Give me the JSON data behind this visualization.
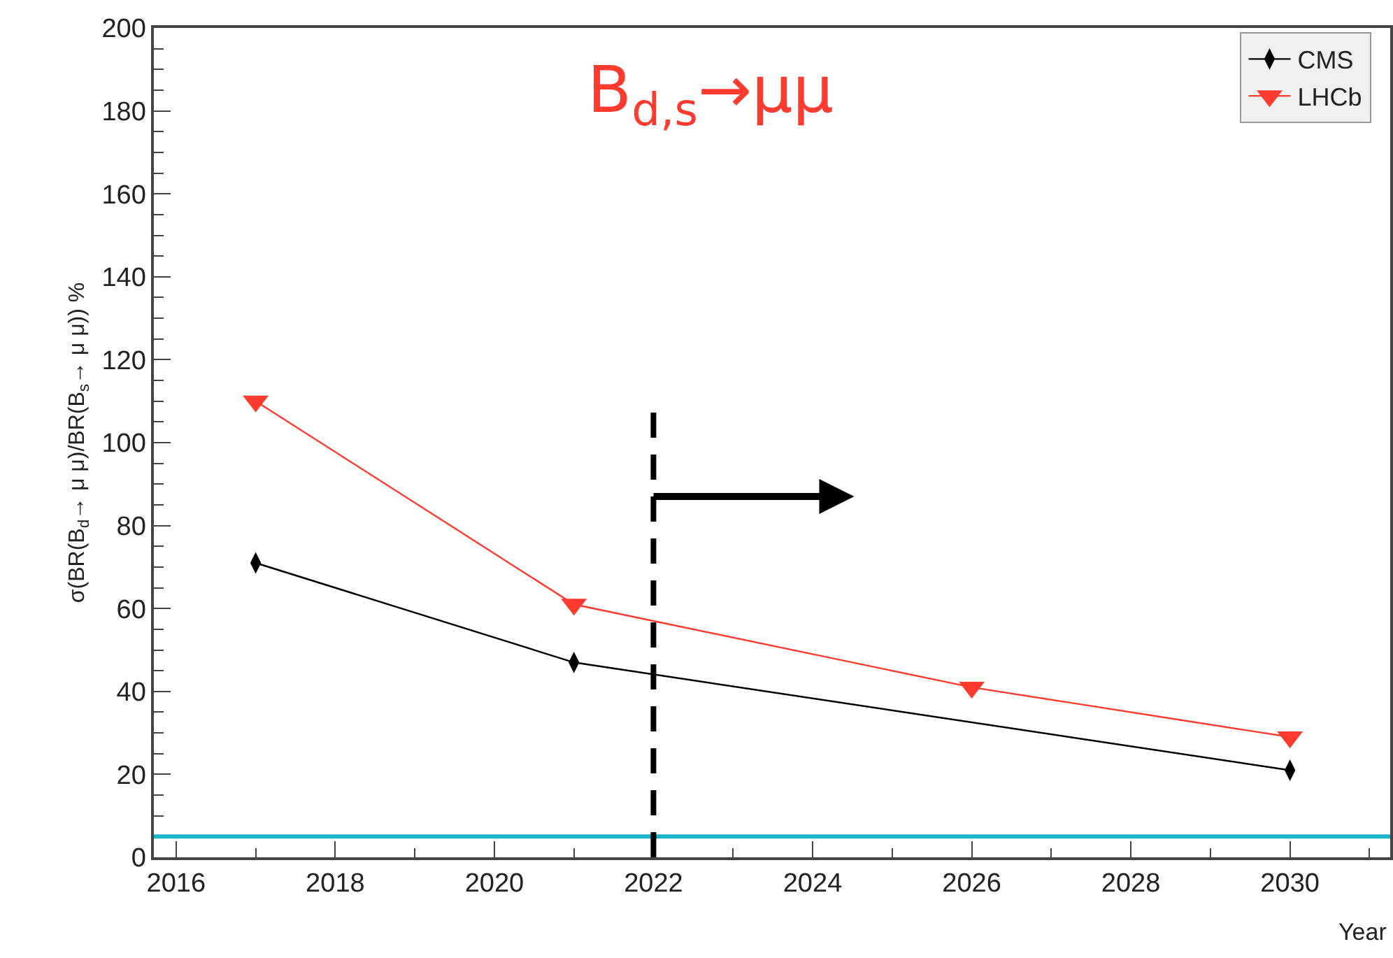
{
  "chart_data": {
    "type": "line",
    "title": "B$_{d,s}$→μμ",
    "xlabel": "Year",
    "ylabel": "σ(BR(B$_{d}$→ μ μ)/BR(B$_{s}$→ μ μ)) %",
    "series": [
      {
        "name": "CMS",
        "color": "#000000",
        "marker": "diamond",
        "x": [
          2017,
          2021,
          2030
        ],
        "values": [
          71,
          47,
          21
        ]
      },
      {
        "name": "LHCb",
        "color": "#ff3b2f",
        "marker": "triangle",
        "x": [
          2017,
          2021,
          2026,
          2030
        ],
        "values": [
          110,
          61,
          41,
          29
        ]
      }
    ],
    "xlim": [
      2015.72,
      2031.26
    ],
    "xticks": [
      2016,
      2018,
      2020,
      2022,
      2024,
      2026,
      2028,
      2030
    ],
    "ylim": [
      0,
      200
    ],
    "yticks": [
      0,
      20,
      40,
      60,
      80,
      100,
      120,
      140,
      160,
      180,
      200
    ],
    "ref_lines": [
      {
        "axis": "y",
        "value": 5,
        "color": "#1ab4c8",
        "line_style": "solid"
      },
      {
        "axis": "x",
        "value": 2022,
        "color": "#000000",
        "line_style": "dashed"
      }
    ],
    "grid": false,
    "legend": "top right",
    "line_style": "solid"
  }
}
